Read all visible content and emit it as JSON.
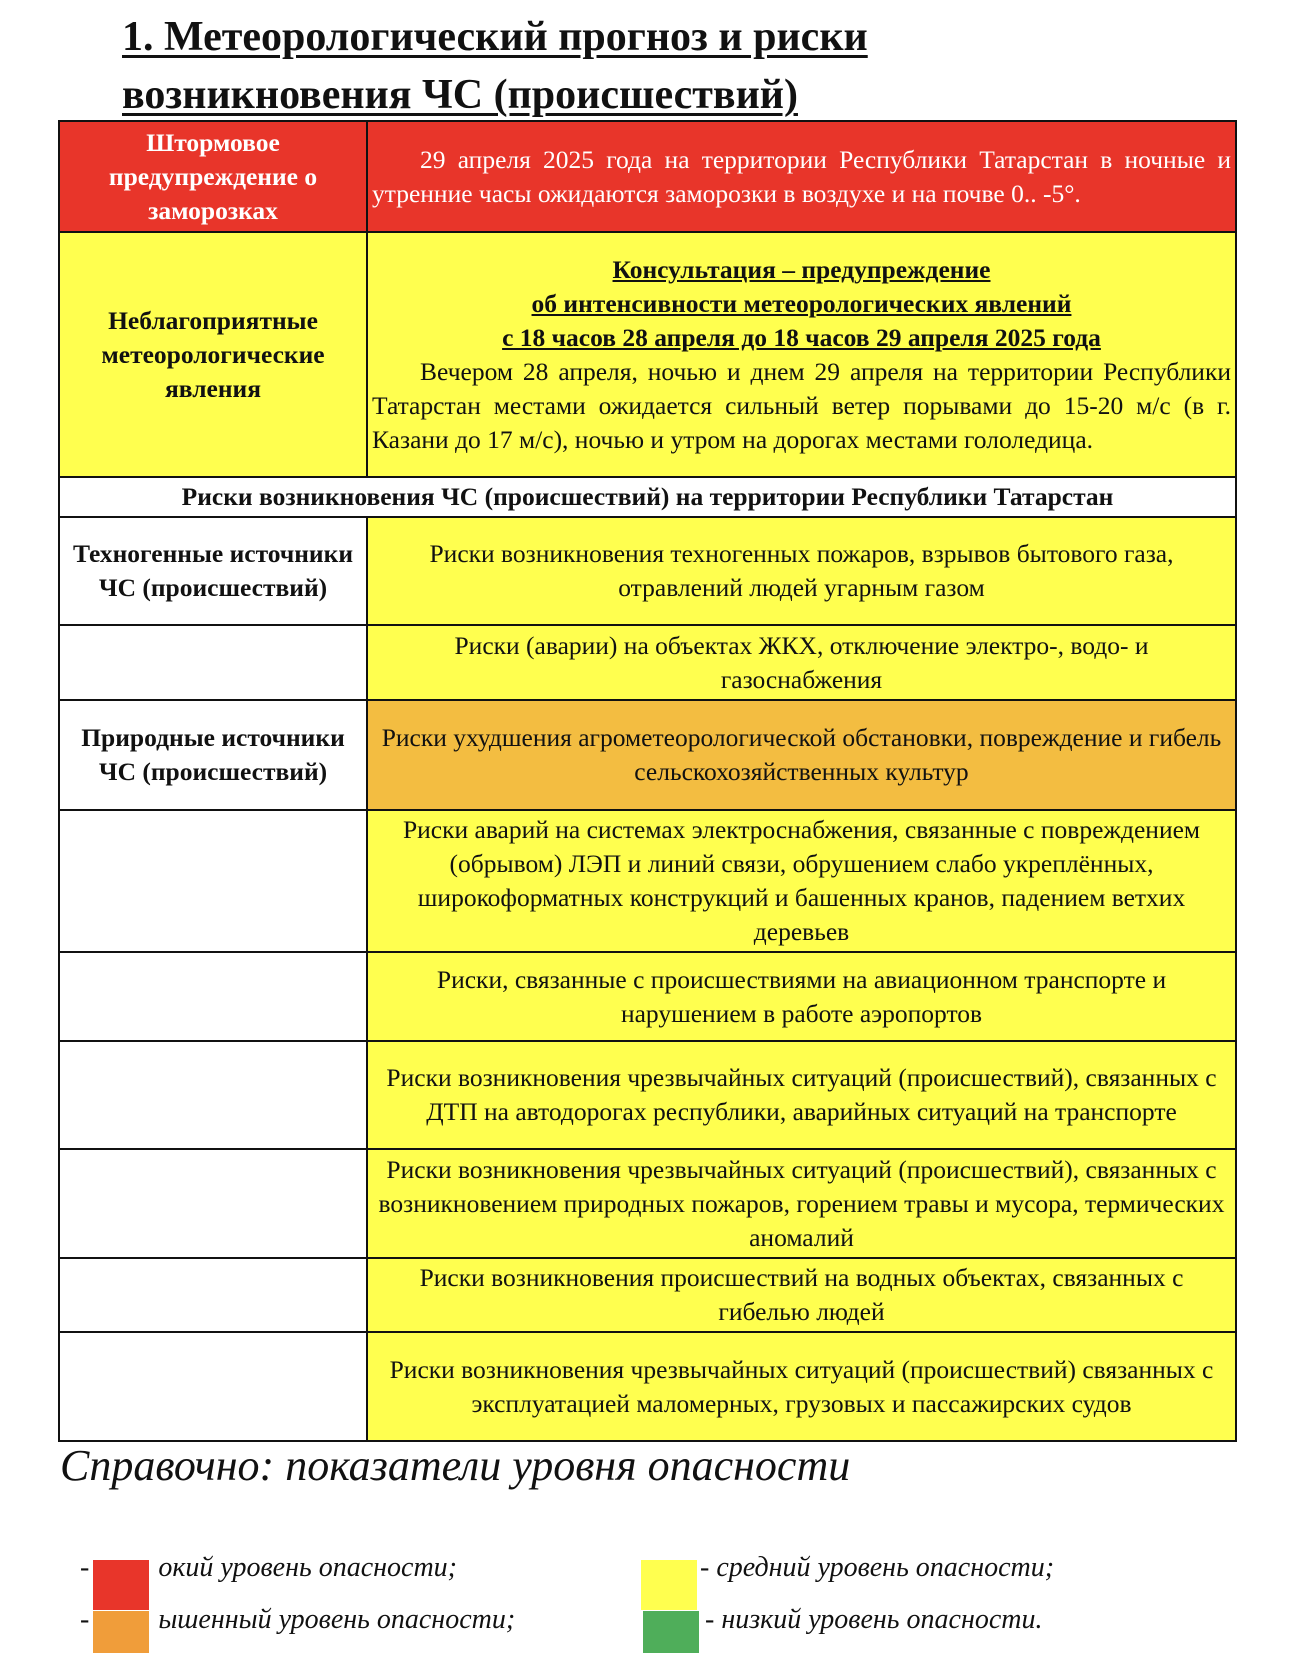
{
  "title": {
    "line1": "1. Метеорологический прогноз и риски",
    "line2": "возникновения ЧС (происшествий)"
  },
  "storm": {
    "label": "Штормовое предупреждение о заморозках",
    "text": "29 апреля 2025 года на территории Республики Татарстан в ночные и утренние часы ожидаются заморозки  в воздухе  и  на почве  0.. -5°.",
    "color": "#e8352a"
  },
  "adverse": {
    "label": "Неблагоприятные метеорологические явления",
    "heading1": "Консультация – предупреждение",
    "heading2": "об интенсивности метеорологических явлений",
    "heading3": "с 18 часов 28 апреля до 18 часов 29 апреля 2025 года",
    "text": "Вечером 28 апреля, ночью и днем 29 апреля на территории Республики Татарстан местами ожидается сильный ветер порывами до 15-20 м/с (в г. Казани до 17 м/с), ночью и утром на дорогах местами гололедица.",
    "color": "#ffff4f"
  },
  "risks_header": "Риски возникновения ЧС (происшествий) на территории Республики Татарстан",
  "risks": [
    {
      "source": "Техногенные источники ЧС (происшествий)",
      "text": "Риски возникновения техногенных пожаров, взрывов бытового газа, отравлений людей угарным газом",
      "level": "yellow"
    },
    {
      "source": "",
      "text": "Риски (аварии) на объектах ЖКХ, отключение электро-, водо- и газоснабжения",
      "level": "yellow"
    },
    {
      "source": "Природные источники ЧС (происшествий)",
      "text": "Риски ухудшения агрометеорологической обстановки, повреждение и гибель сельскохозяйственных культур",
      "level": "orange"
    },
    {
      "source": "",
      "text": "Риски аварий на системах электроснабжения, связанные с повреждением (обрывом) ЛЭП и линий связи, обрушением слабо укреплённых, широкоформатных конструкций и башенных кранов, падением ветхих деревьев",
      "level": "yellow"
    },
    {
      "source": "",
      "text": "Риски, связанные с происшествиями на авиационном транспорте и нарушением в работе аэропортов",
      "level": "yellow"
    },
    {
      "source": "",
      "text": "Риски возникновения чрезвычайных ситуаций (происшествий), связанных с ДТП на автодорогах республики, аварийных ситуаций на транспорте",
      "level": "yellow"
    },
    {
      "source": "",
      "text": "Риски возникновения чрезвычайных ситуаций (происшествий), связанных с возникновением природных пожаров, горением травы и мусора, термических аномалий",
      "level": "yellow"
    },
    {
      "source": "",
      "text": "Риски возникновения происшествий на водных объектах, связанных с гибелью людей",
      "level": "yellow"
    },
    {
      "source": "",
      "text": "Риски возникновения чрезвычайных ситуаций (происшествий) связанных с эксплуатацией маломерных, грузовых и пассажирских судов",
      "level": "yellow"
    }
  ],
  "reference": {
    "title": "Справочно: показатели уровня опасности",
    "legend": [
      {
        "text": "окий уровень опасности;",
        "color": "#e8352a"
      },
      {
        "text": "ышенный уровень опасности;",
        "color": "#f09d3a"
      },
      {
        "text": "- средний уровень опасности;",
        "color": "#ffff4f"
      },
      {
        "text": "- низкий уровень опасности.",
        "color": "#4fae5a"
      }
    ]
  }
}
